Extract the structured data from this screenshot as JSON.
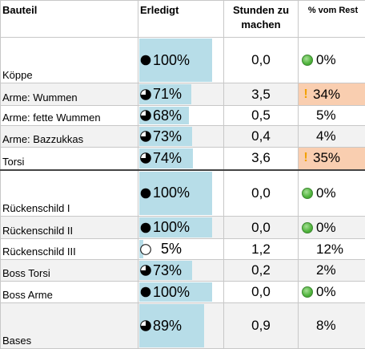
{
  "header": {
    "col1": "Bauteil",
    "col2": "Erledigt",
    "col3": "Stunden zu machen",
    "col4": "% vom Rest"
  },
  "rows": [
    {
      "name": "Köppe",
      "done": "100%",
      "done_fraction": 1.0,
      "hours": "0,0",
      "rest": "0%",
      "rest_icon": "green-circle-icon",
      "height": 57,
      "grey": false,
      "highlight": false
    },
    {
      "name": "Arme: Wummen",
      "done": "71%",
      "done_fraction": 0.71,
      "hours": "3,5",
      "rest": "34%",
      "rest_icon": "exclamation-icon",
      "height": 28,
      "grey": true,
      "highlight": true
    },
    {
      "name": "Arme: fette Wummen",
      "done": "68%",
      "done_fraction": 0.68,
      "hours": "0,5",
      "rest": "5%",
      "rest_icon": "",
      "height": 25,
      "grey": false,
      "highlight": false
    },
    {
      "name": "Arme: Bazzukkas",
      "done": "73%",
      "done_fraction": 0.73,
      "hours": "0,4",
      "rest": "4%",
      "rest_icon": "",
      "height": 27,
      "grey": true,
      "highlight": false
    },
    {
      "name": "Torsi",
      "done": "74%",
      "done_fraction": 0.74,
      "hours": "3,6",
      "rest": "35%",
      "rest_icon": "exclamation-icon",
      "height": 28,
      "grey": false,
      "highlight": true
    },
    {
      "name": "Rückenschild I",
      "done": "100%",
      "done_fraction": 1.0,
      "hours": "0,0",
      "rest": "0%",
      "rest_icon": "green-circle-icon",
      "height": 58,
      "grey": false,
      "highlight": false
    },
    {
      "name": "Rückenschild II",
      "done": "100%",
      "done_fraction": 1.0,
      "hours": "0,0",
      "rest": "0%",
      "rest_icon": "green-circle-icon",
      "height": 28,
      "grey": true,
      "highlight": false
    },
    {
      "name": "Rückenschild III",
      "done": "5%",
      "done_fraction": 0.05,
      "hours": "1,2",
      "rest": "12%",
      "rest_icon": "",
      "height": 26,
      "grey": false,
      "highlight": false
    },
    {
      "name": "Boss Torsi",
      "done": "73%",
      "done_fraction": 0.73,
      "hours": "0,2",
      "rest": "2%",
      "rest_icon": "",
      "height": 27,
      "grey": true,
      "highlight": false
    },
    {
      "name": "Boss Arme",
      "done": "100%",
      "done_fraction": 1.0,
      "hours": "0,0",
      "rest": "0%",
      "rest_icon": "green-circle-icon",
      "height": 27,
      "grey": false,
      "highlight": false
    },
    {
      "name": "Bases",
      "done": "89%",
      "done_fraction": 0.89,
      "hours": "0,9",
      "rest": "8%",
      "rest_icon": "",
      "height": 57,
      "grey": true,
      "highlight": false
    }
  ],
  "colors": {
    "bar": "#b7dde8",
    "highlight": "#f9ceb0",
    "grey_row": "#f2f2f2",
    "warning": "#f2a000",
    "ok_green": "#4eb33b"
  }
}
